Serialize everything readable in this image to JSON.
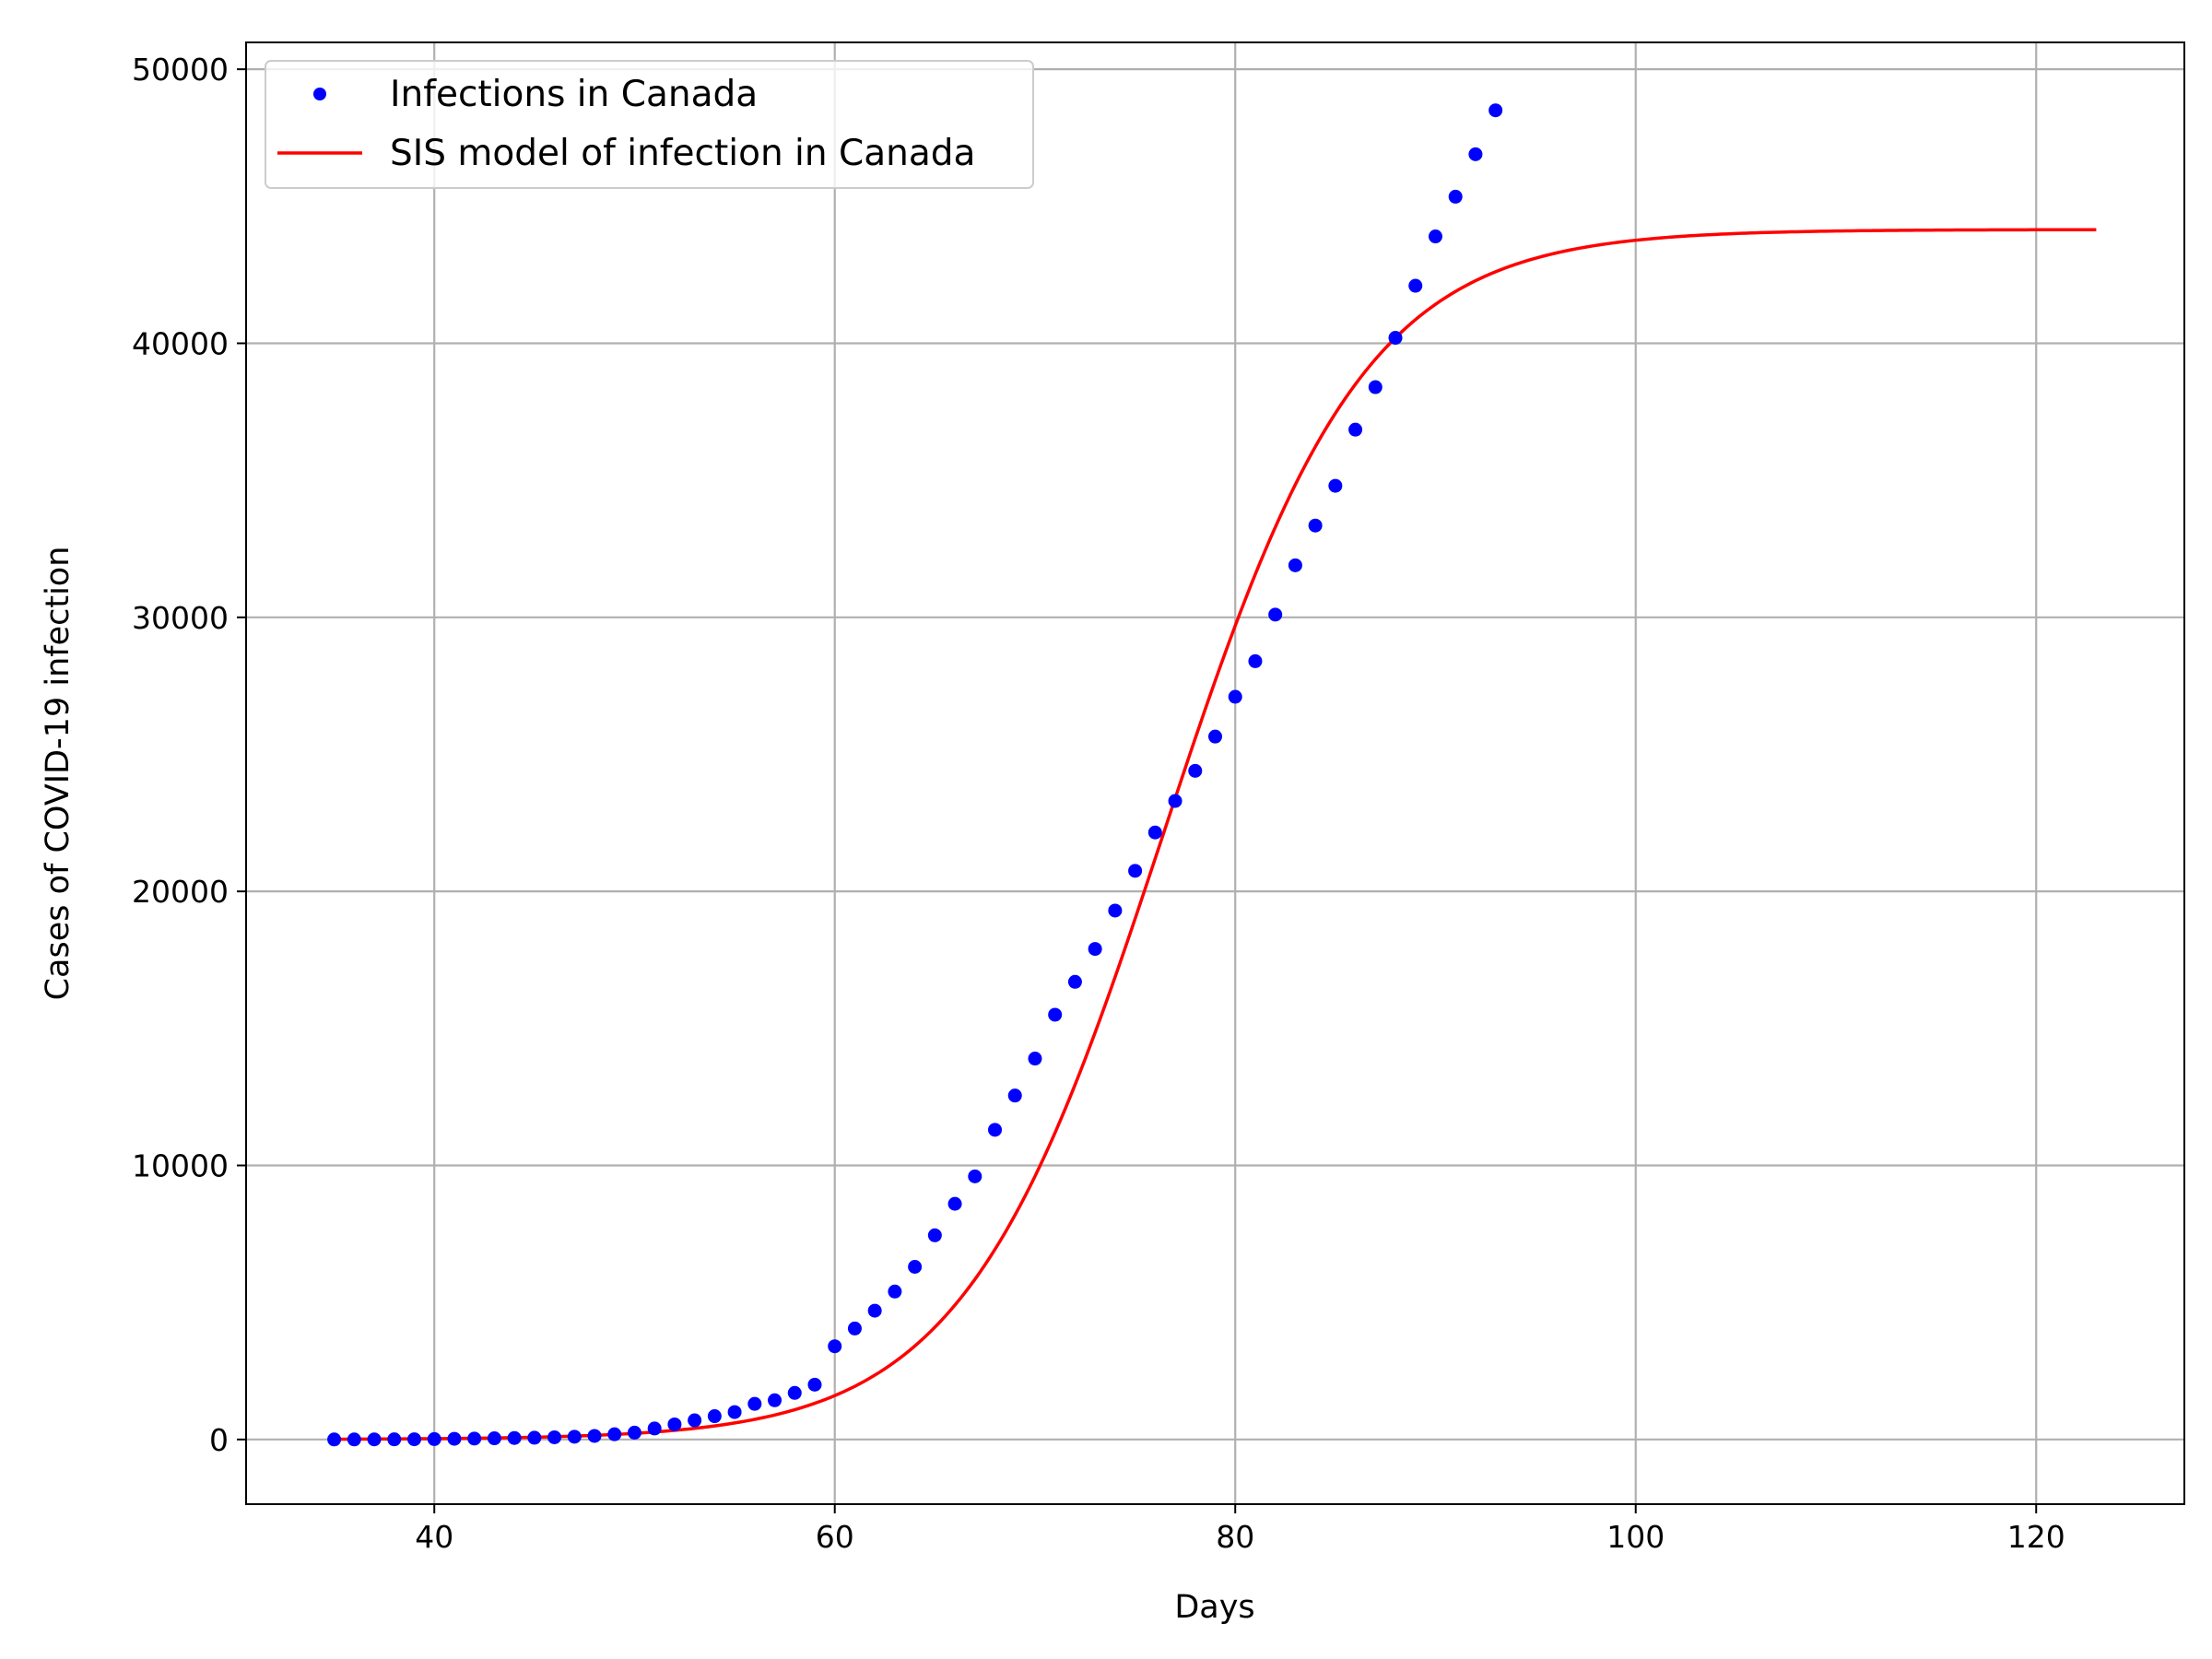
{
  "chart_data": {
    "type": "line",
    "title": "",
    "xlabel": "Days",
    "ylabel": "Cases of COVID-19 infection",
    "xlim": [
      30.6,
      127.4
    ],
    "ylim": [
      -2360,
      50980
    ],
    "xticks": [
      40,
      60,
      80,
      100,
      120
    ],
    "yticks": [
      0,
      10000,
      20000,
      30000,
      40000,
      50000
    ],
    "grid": true,
    "legend_position": "top-left",
    "colors": {
      "observed": "#0000ff",
      "model": "#ff0000",
      "grid": "#b0b0b0",
      "axes": "#000000"
    },
    "series": [
      {
        "name": "Infections in Canada",
        "style": "dots",
        "x": [
          35,
          36,
          37,
          38,
          39,
          40,
          41,
          42,
          43,
          44,
          45,
          46,
          47,
          48,
          49,
          50,
          51,
          52,
          53,
          54,
          55,
          56,
          57,
          58,
          59,
          60,
          61,
          62,
          63,
          64,
          65,
          66,
          67,
          68,
          69,
          70,
          71,
          72,
          73,
          74,
          75,
          76,
          77,
          78,
          79,
          80,
          81,
          82,
          83,
          84,
          85,
          86,
          87,
          88,
          89,
          90,
          91,
          92,
          93
        ],
        "y": [
          1,
          2,
          4,
          6,
          8,
          14,
          24,
          34,
          44,
          54,
          64,
          80,
          100,
          130,
          190,
          250,
          400,
          550,
          700,
          850,
          1000,
          1300,
          1430,
          1700,
          2000,
          3400,
          4050,
          4700,
          5400,
          6300,
          7450,
          8600,
          9600,
          11300,
          12550,
          13900,
          15500,
          16700,
          17900,
          19300,
          20750,
          22150,
          23300,
          24400,
          25650,
          27100,
          28400,
          30100,
          31900,
          33350,
          34800,
          36850,
          38400,
          40200,
          42100,
          43900,
          45350,
          46900,
          48500
        ]
      },
      {
        "name": "SIS model of infection in Canada",
        "style": "line",
        "model": {
          "capacity": 44150,
          "rate": 0.2,
          "midpoint": 76.4,
          "x_start": 35,
          "x_end": 123
        }
      }
    ]
  }
}
